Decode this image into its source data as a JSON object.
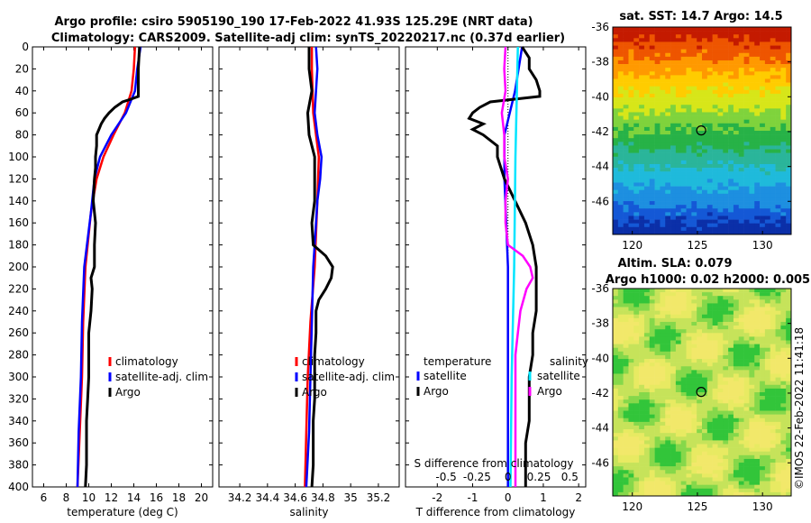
{
  "title": {
    "line1": "Argo profile: csiro 5905190_190 17-Feb-2022 41.93S 125.29E (NRT data)",
    "line2": "Climatology: CARS2009. Satellite-adj clim: synTS_20220217.nc (0.37d earlier)"
  },
  "sst_title": "sat. SST: 14.7 Argo: 14.5",
  "sla_title1": "Altim. SLA: 0.079",
  "sla_title2": "Argo h1000: 0.02 h2000: 0.0053",
  "credit": "©IMOS 22-Feb-2022 11:41:18",
  "colors": {
    "climatology": "#ff0000",
    "satellite": "#0000ff",
    "argo": "#000000",
    "sat_salinity": "#00e5ff",
    "argo_salinity": "#ff00ff"
  },
  "chart_data": [
    {
      "type": "line",
      "name": "temperature",
      "xlabel": "temperature (deg C)",
      "ylabel": "",
      "xlim": [
        5,
        21
      ],
      "xticks": [
        "6",
        "8",
        "10",
        "12",
        "14",
        "16",
        "18",
        "20"
      ],
      "xtick_values": [
        6,
        8,
        10,
        12,
        14,
        16,
        18,
        20
      ],
      "ylim": [
        0,
        400
      ],
      "yticks": [
        "0",
        "20",
        "40",
        "60",
        "80",
        "100",
        "120",
        "140",
        "160",
        "180",
        "200",
        "220",
        "240",
        "260",
        "280",
        "300",
        "320",
        "340",
        "360",
        "380",
        "400"
      ],
      "ytick_values": [
        0,
        20,
        40,
        60,
        80,
        100,
        120,
        140,
        160,
        180,
        200,
        220,
        240,
        260,
        280,
        300,
        320,
        340,
        360,
        380,
        400
      ],
      "legend": [
        "climatology",
        "satellite-adj. clim",
        "Argo"
      ],
      "series": [
        {
          "name": "climatology",
          "depth": [
            0,
            20,
            40,
            60,
            80,
            100,
            120,
            150,
            200,
            250,
            300,
            350,
            400
          ],
          "values": [
            14.1,
            14.0,
            13.8,
            13.2,
            12.2,
            11.3,
            10.7,
            10.2,
            9.7,
            9.5,
            9.4,
            9.2,
            9.0
          ]
        },
        {
          "name": "satellite-adj. clim",
          "depth": [
            0,
            20,
            40,
            60,
            80,
            100,
            120,
            150,
            200,
            250,
            300,
            350,
            400
          ],
          "values": [
            14.6,
            14.3,
            14.1,
            13.3,
            12.0,
            11.0,
            10.5,
            10.2,
            9.6,
            9.4,
            9.3,
            9.1,
            9.0
          ]
        },
        {
          "name": "Argo",
          "depth": [
            0,
            20,
            45,
            48,
            50,
            55,
            60,
            65,
            70,
            75,
            80,
            90,
            100,
            110,
            120,
            140,
            160,
            180,
            200,
            210,
            220,
            240,
            260,
            280,
            300,
            320,
            340,
            360,
            380,
            400
          ],
          "values": [
            14.5,
            14.4,
            14.4,
            13.6,
            13.0,
            12.3,
            11.8,
            11.4,
            11.1,
            10.9,
            10.7,
            10.7,
            10.6,
            10.6,
            10.5,
            10.4,
            10.6,
            10.5,
            10.5,
            10.2,
            10.3,
            10.2,
            10.0,
            10.0,
            10.0,
            9.9,
            9.8,
            9.8,
            9.8,
            9.7
          ]
        }
      ]
    },
    {
      "type": "line",
      "name": "salinity",
      "xlabel": "salinity",
      "xlim": [
        34.05,
        35.35
      ],
      "xticks": [
        "34.2",
        "34.4",
        "34.6",
        "34.8",
        "35",
        "35.2"
      ],
      "xtick_values": [
        34.2,
        34.4,
        34.6,
        34.8,
        35.0,
        35.2
      ],
      "ylim": [
        0,
        400
      ],
      "legend": [
        "climatology",
        "satellite-adj. clim",
        "Argo"
      ],
      "series": [
        {
          "name": "climatology",
          "depth": [
            0,
            20,
            60,
            100,
            140,
            200,
            250,
            300,
            350,
            400
          ],
          "values": [
            34.72,
            34.72,
            34.73,
            34.77,
            34.76,
            34.74,
            34.71,
            34.69,
            34.68,
            34.67
          ]
        },
        {
          "name": "satellite-adj. clim",
          "depth": [
            0,
            20,
            60,
            80,
            100,
            120,
            140,
            180,
            200,
            250,
            300,
            350,
            400
          ],
          "values": [
            34.75,
            34.76,
            34.74,
            34.76,
            34.79,
            34.78,
            34.76,
            34.74,
            34.73,
            34.72,
            34.71,
            34.7,
            34.68
          ]
        },
        {
          "name": "Argo",
          "depth": [
            0,
            20,
            40,
            60,
            80,
            100,
            120,
            140,
            160,
            180,
            190,
            200,
            210,
            220,
            230,
            240,
            260,
            280,
            300,
            320,
            340,
            360,
            380,
            400
          ],
          "values": [
            34.7,
            34.7,
            34.72,
            34.69,
            34.7,
            34.74,
            34.74,
            34.74,
            34.72,
            34.73,
            34.82,
            34.87,
            34.86,
            34.82,
            34.77,
            34.75,
            34.75,
            34.74,
            34.74,
            34.74,
            34.73,
            34.73,
            34.73,
            34.72
          ]
        }
      ]
    },
    {
      "type": "line",
      "name": "difference",
      "xlabel": "T difference from climatology",
      "xlabel_top": "S difference from climatology",
      "xlim": [
        -2.9,
        2.2
      ],
      "xticks": [
        "-2",
        "-1",
        "0",
        "1",
        "2"
      ],
      "xtick_values": [
        -2,
        -1,
        0,
        1,
        2
      ],
      "sticks": [
        "-0.5",
        "-0.25",
        "0",
        "0.25",
        "0.5"
      ],
      "stick_values": [
        -0.5,
        -0.25,
        0,
        0.25,
        0.5
      ],
      "ylim": [
        0,
        400
      ],
      "legend_temperature": {
        "heading": "temperature",
        "items": [
          "satellite",
          "Argo"
        ]
      },
      "legend_salinity": {
        "heading": "salinity",
        "items": [
          "satellite",
          "Argo"
        ]
      },
      "series": [
        {
          "name": "T satellite",
          "depth": [
            0,
            40,
            80,
            120,
            200,
            300,
            400
          ],
          "values": [
            0.4,
            0.2,
            -0.1,
            -0.1,
            0.0,
            0.0,
            0.0
          ]
        },
        {
          "name": "T Argo",
          "depth": [
            0,
            10,
            20,
            30,
            40,
            45,
            50,
            55,
            60,
            65,
            70,
            75,
            80,
            90,
            100,
            120,
            140,
            160,
            180,
            200,
            220,
            240,
            260,
            280,
            300,
            320,
            340,
            360,
            380,
            400
          ],
          "values": [
            0.4,
            0.6,
            0.6,
            0.8,
            0.9,
            0.9,
            -0.5,
            -0.8,
            -1.0,
            -1.1,
            -0.7,
            -1.0,
            -0.7,
            -0.3,
            -0.3,
            -0.1,
            0.2,
            0.5,
            0.7,
            0.8,
            0.8,
            0.8,
            0.7,
            0.7,
            0.6,
            0.6,
            0.6,
            0.5,
            0.5,
            0.5
          ]
        },
        {
          "name": "S satellite",
          "depth": [
            0,
            100,
            200,
            300,
            400
          ],
          "values": [
            0.08,
            0.06,
            0.05,
            0.03,
            0.02
          ]
        },
        {
          "name": "S Argo",
          "depth": [
            0,
            20,
            40,
            60,
            80,
            100,
            120,
            140,
            160,
            180,
            190,
            200,
            210,
            220,
            240,
            260,
            280,
            300,
            320,
            340,
            360,
            380,
            400
          ],
          "values": [
            -0.02,
            -0.03,
            -0.02,
            -0.05,
            -0.03,
            -0.03,
            0.0,
            -0.02,
            -0.02,
            0.0,
            0.12,
            0.18,
            0.2,
            0.15,
            0.1,
            0.08,
            0.06,
            0.06,
            0.06,
            0.06,
            0.06,
            0.06,
            0.06
          ]
        }
      ]
    },
    {
      "type": "heatmap",
      "name": "sst_map",
      "xticks": [
        "120",
        "125",
        "130"
      ],
      "xtick_values": [
        120,
        125,
        130
      ],
      "yticks": [
        "-36",
        "-38",
        "-40",
        "-42",
        "-44",
        "-46"
      ],
      "ytick_values": [
        -36,
        -38,
        -40,
        -42,
        -44,
        -46
      ],
      "xlim": [
        118.5,
        132.2
      ],
      "ylim": [
        -47.9,
        -36
      ],
      "marker": {
        "lon": 125.29,
        "lat": -41.93
      }
    },
    {
      "type": "heatmap",
      "name": "sla_map",
      "xticks": [
        "120",
        "125",
        "130"
      ],
      "xtick_values": [
        120,
        125,
        130
      ],
      "yticks": [
        "-36",
        "-38",
        "-40",
        "-42",
        "-44",
        "-46"
      ],
      "ytick_values": [
        -36,
        -38,
        -40,
        -42,
        -44,
        -46
      ],
      "xlim": [
        118.5,
        132.2
      ],
      "ylim": [
        -47.9,
        -36
      ],
      "marker": {
        "lon": 125.29,
        "lat": -41.93
      }
    }
  ]
}
